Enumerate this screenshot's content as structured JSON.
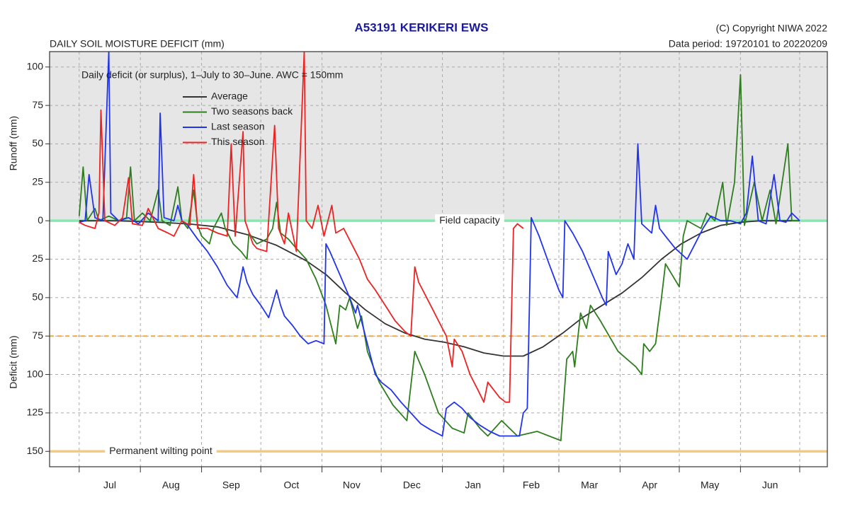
{
  "chart_data": {
    "type": "line",
    "title": "A53191  KERIKERI EWS",
    "subtitle": "DAILY SOIL MOISTURE DEFICIT (mm)",
    "copyright": "(C) Copyright NIWA  2022",
    "data_period": "Data period:  19720101  to  20220209",
    "annotation": "Daily deficit (or surplus), 1–July to 30–June.  AWC = 150mm",
    "ylabel_top": "Runoff (mm)",
    "ylabel_bottom": "Deficit (mm)",
    "xlim": [
      -15,
      379
    ],
    "ylim": [
      -160,
      110
    ],
    "xticks": [
      0,
      31,
      62,
      92,
      123,
      153,
      184,
      215,
      243,
      274,
      304,
      335,
      365
    ],
    "x_tick_labels": [
      "Jul",
      "Aug",
      "Sep",
      "Oct",
      "Nov",
      "Dec",
      "Jan",
      "Feb",
      "Mar",
      "Apr",
      "May",
      "Jun"
    ],
    "yticks": [
      100,
      75,
      50,
      25,
      0,
      {
        "value": -25,
        "label": "25"
      },
      {
        "value": -50,
        "label": "50"
      },
      {
        "value": -75,
        "label": "75"
      },
      {
        "value": -100,
        "label": "100"
      },
      {
        "value": -125,
        "label": "125"
      },
      {
        "value": -150,
        "label": "150"
      }
    ],
    "grid": true,
    "legend": "upper left",
    "reference_lines": [
      {
        "value": 0,
        "label": "Field capacity",
        "color": "#86eab0"
      },
      {
        "value": -75,
        "color": "#f3a93a",
        "dashed": true
      },
      {
        "value": -150,
        "label": "Permanent wilting point",
        "color": "#f5c97e"
      }
    ],
    "series": [
      {
        "name": "Average",
        "color": "#333333",
        "x": [
          0,
          20,
          40,
          55,
          70,
          85,
          100,
          115,
          125,
          135,
          145,
          155,
          165,
          175,
          185,
          195,
          205,
          215,
          225,
          235,
          245,
          255,
          265,
          275,
          285,
          295,
          305,
          315,
          325,
          335,
          345,
          365
        ],
        "values": [
          0,
          0,
          -1,
          -2,
          -4,
          -9,
          -16,
          -26,
          -35,
          -47,
          -58,
          -67,
          -73,
          -77,
          -79,
          -82,
          -86,
          -88,
          -88,
          -82,
          -73,
          -63,
          -55,
          -47,
          -37,
          -25,
          -15,
          -8,
          -3,
          -1,
          0,
          0
        ]
      },
      {
        "name": "Two seasons back",
        "color": "#2e7d1e",
        "x": [
          0,
          2,
          4,
          8,
          10,
          15,
          20,
          24,
          26,
          28,
          32,
          36,
          40,
          42,
          46,
          50,
          52,
          55,
          58,
          60,
          62,
          66,
          68,
          72,
          74,
          78,
          82,
          85,
          86,
          90,
          95,
          98,
          100,
          102,
          106,
          110,
          115,
          120,
          125,
          130,
          132,
          135,
          137,
          139,
          141,
          143,
          146,
          152,
          159,
          166,
          170,
          175,
          182,
          189,
          195,
          197,
          203,
          207,
          214,
          222,
          232,
          244,
          247,
          250,
          251,
          254,
          257,
          259,
          264,
          273,
          282,
          285,
          286,
          289,
          292,
          295,
          297,
          304,
          306,
          308,
          315,
          318,
          322,
          326,
          328,
          332,
          335,
          337,
          342,
          346,
          350,
          353,
          359,
          361,
          365
        ],
        "values": [
          3,
          35,
          0,
          8,
          0,
          3,
          0,
          2,
          35,
          0,
          5,
          0,
          20,
          0,
          -3,
          22,
          0,
          -5,
          20,
          -3,
          -10,
          -15,
          -5,
          5,
          -5,
          -15,
          -20,
          -25,
          -8,
          -15,
          -12,
          -5,
          12,
          -8,
          -12,
          -18,
          -25,
          -38,
          -55,
          -80,
          -55,
          -58,
          -50,
          -60,
          -70,
          -62,
          -85,
          -105,
          -120,
          -130,
          -85,
          -100,
          -125,
          -135,
          -138,
          -125,
          -135,
          -140,
          -130,
          -140,
          -137,
          -143,
          -90,
          -85,
          -95,
          -60,
          -70,
          -55,
          -65,
          -85,
          -95,
          -100,
          -80,
          -85,
          -80,
          -50,
          -28,
          -43,
          -10,
          0,
          -5,
          5,
          0,
          25,
          -3,
          25,
          95,
          -3,
          25,
          0,
          20,
          -2,
          50,
          0,
          0
        ]
      },
      {
        "name": "Last season",
        "color": "#2233ee",
        "x": [
          0,
          3,
          5,
          8,
          12,
          15,
          16,
          20,
          25,
          30,
          35,
          40,
          41,
          43,
          48,
          50,
          52,
          55,
          60,
          65,
          70,
          75,
          80,
          83,
          85,
          88,
          92,
          96,
          100,
          102,
          104,
          108,
          112,
          116,
          120,
          124,
          125,
          127,
          132,
          137,
          140,
          141,
          145,
          150,
          153,
          158,
          163,
          168,
          173,
          178,
          184,
          186,
          190,
          194,
          198,
          203,
          208,
          213,
          218,
          223,
          225,
          227,
          229,
          233,
          238,
          243,
          245,
          246,
          250,
          255,
          260,
          265,
          267,
          268,
          272,
          275,
          278,
          281,
          283,
          285,
          290,
          292,
          294,
          297,
          302,
          308,
          312,
          316,
          320,
          325,
          330,
          335,
          338,
          341,
          344,
          348,
          352,
          355,
          358,
          361,
          365
        ],
        "values": [
          -1,
          0,
          30,
          2,
          0,
          110,
          5,
          0,
          2,
          -2,
          5,
          0,
          70,
          2,
          0,
          10,
          0,
          -3,
          -12,
          -20,
          -30,
          -42,
          -50,
          -30,
          -40,
          -48,
          -55,
          -63,
          -45,
          -55,
          -62,
          -68,
          -75,
          -80,
          -78,
          -80,
          -15,
          -20,
          -35,
          -50,
          -60,
          -55,
          -75,
          -100,
          -105,
          -110,
          -118,
          -125,
          -132,
          -136,
          -140,
          -122,
          -118,
          -122,
          -128,
          -133,
          -137,
          -140,
          -140,
          -140,
          -125,
          -122,
          2,
          -10,
          -28,
          -45,
          -50,
          0,
          -8,
          -20,
          -35,
          -50,
          -55,
          -20,
          -35,
          -28,
          -15,
          -25,
          50,
          -2,
          -8,
          10,
          -5,
          -10,
          -18,
          -25,
          -15,
          -5,
          3,
          0,
          0,
          -2,
          5,
          42,
          0,
          -2,
          30,
          0,
          -1,
          5,
          0
        ]
      },
      {
        "name": "This season",
        "color": "#ee2222",
        "x": [
          0,
          3,
          8,
          10,
          11,
          13,
          18,
          22,
          25,
          27,
          32,
          35,
          40,
          45,
          48,
          52,
          56,
          58,
          60,
          65,
          70,
          75,
          77,
          79,
          83,
          84,
          88,
          90,
          95,
          99,
          101,
          104,
          106,
          110,
          114,
          115,
          118,
          121,
          124,
          128,
          130,
          134,
          138,
          142,
          146,
          150,
          155,
          160,
          165,
          168,
          170,
          172,
          178,
          182,
          186,
          189,
          190,
          194,
          198,
          202,
          205,
          207,
          210,
          213,
          216,
          218,
          220,
          222,
          225
        ],
        "values": [
          -1,
          -3,
          -5,
          5,
          72,
          0,
          -3,
          2,
          28,
          -2,
          -3,
          8,
          -5,
          -8,
          -10,
          0,
          -3,
          30,
          -5,
          -5,
          -8,
          -10,
          50,
          -10,
          58,
          0,
          -15,
          -18,
          -20,
          62,
          -5,
          -15,
          5,
          -20,
          110,
          0,
          -5,
          10,
          -10,
          10,
          -8,
          -5,
          -15,
          -25,
          -38,
          -45,
          -55,
          -65,
          -72,
          -75,
          -30,
          -40,
          -55,
          -65,
          -75,
          -95,
          -77,
          -85,
          -100,
          -110,
          -118,
          -105,
          -110,
          -115,
          -118,
          -118,
          -5,
          -2,
          -5
        ]
      }
    ]
  }
}
